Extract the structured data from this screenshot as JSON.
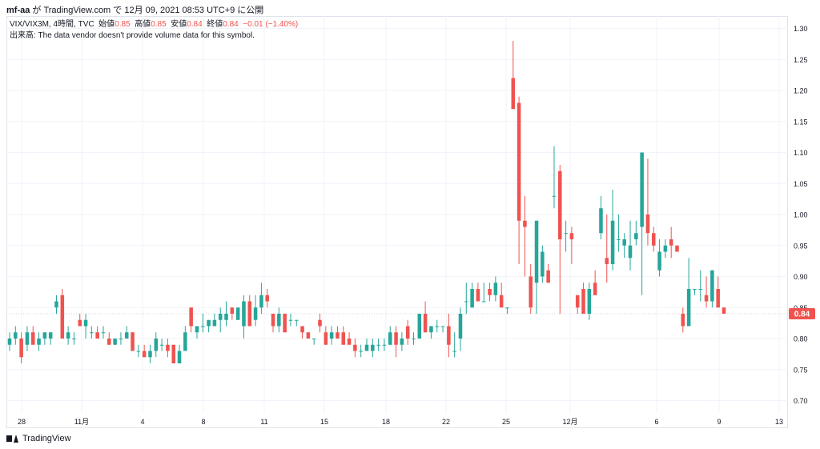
{
  "header": {
    "user": "mf-aa",
    "text": "が TradingView.com で 12月 09, 2021 08:53 UTC+9 に公開"
  },
  "legend": {
    "symbol": "VIX/VIX3M, 4時間, TVC",
    "open_label": "始値",
    "open": "0.85",
    "high_label": "高値",
    "high": "0.85",
    "low_label": "安値",
    "low": "0.84",
    "close_label": "終値",
    "close": "0.84",
    "change": "−0.01 (−1.40%)",
    "volume_note": "出来高: The data vendor doesn't provide volume data for this symbol."
  },
  "footer": {
    "brand": "TradingView"
  },
  "colors": {
    "up": "#26a69a",
    "down": "#ef5350",
    "grid": "#f0f3fa",
    "axis_text": "#131722"
  },
  "chart_data": {
    "type": "candlestick",
    "ylim": [
      0.68,
      1.32
    ],
    "y_ticks": [
      0.7,
      0.75,
      0.8,
      0.85,
      0.9,
      0.95,
      1.0,
      1.05,
      1.1,
      1.15,
      1.2,
      1.25,
      1.3
    ],
    "x_ticks": [
      "28",
      "11月",
      "4",
      "8",
      "11",
      "15",
      "18",
      "22",
      "25",
      "12月",
      "6",
      "9",
      "13"
    ],
    "last_price": 0.84,
    "candles": [
      {
        "o": 0.79,
        "h": 0.81,
        "l": 0.78,
        "c": 0.8
      },
      {
        "o": 0.8,
        "h": 0.82,
        "l": 0.79,
        "c": 0.81
      },
      {
        "o": 0.8,
        "h": 0.81,
        "l": 0.76,
        "c": 0.77
      },
      {
        "o": 0.79,
        "h": 0.82,
        "l": 0.78,
        "c": 0.81
      },
      {
        "o": 0.81,
        "h": 0.82,
        "l": 0.79,
        "c": 0.79
      },
      {
        "o": 0.79,
        "h": 0.81,
        "l": 0.78,
        "c": 0.8
      },
      {
        "o": 0.8,
        "h": 0.81,
        "l": 0.79,
        "c": 0.81
      },
      {
        "o": 0.8,
        "h": 0.81,
        "l": 0.79,
        "c": 0.81
      },
      {
        "o": 0.85,
        "h": 0.87,
        "l": 0.84,
        "c": 0.86
      },
      {
        "o": 0.87,
        "h": 0.88,
        "l": 0.8,
        "c": 0.8
      },
      {
        "o": 0.8,
        "h": 0.82,
        "l": 0.79,
        "c": 0.81
      },
      {
        "o": 0.8,
        "h": 0.81,
        "l": 0.79,
        "c": 0.8
      },
      {
        "o": 0.83,
        "h": 0.84,
        "l": 0.82,
        "c": 0.82
      },
      {
        "o": 0.82,
        "h": 0.84,
        "l": 0.8,
        "c": 0.83
      },
      {
        "o": 0.81,
        "h": 0.82,
        "l": 0.8,
        "c": 0.81
      },
      {
        "o": 0.81,
        "h": 0.82,
        "l": 0.8,
        "c": 0.8
      },
      {
        "o": 0.81,
        "h": 0.82,
        "l": 0.8,
        "c": 0.81
      },
      {
        "o": 0.8,
        "h": 0.81,
        "l": 0.79,
        "c": 0.79
      },
      {
        "o": 0.79,
        "h": 0.8,
        "l": 0.79,
        "c": 0.8
      },
      {
        "o": 0.8,
        "h": 0.81,
        "l": 0.79,
        "c": 0.8
      },
      {
        "o": 0.8,
        "h": 0.82,
        "l": 0.8,
        "c": 0.81
      },
      {
        "o": 0.81,
        "h": 0.81,
        "l": 0.78,
        "c": 0.78
      },
      {
        "o": 0.78,
        "h": 0.79,
        "l": 0.77,
        "c": 0.78
      },
      {
        "o": 0.78,
        "h": 0.79,
        "l": 0.77,
        "c": 0.77
      },
      {
        "o": 0.77,
        "h": 0.79,
        "l": 0.76,
        "c": 0.78
      },
      {
        "o": 0.78,
        "h": 0.81,
        "l": 0.77,
        "c": 0.8
      },
      {
        "o": 0.79,
        "h": 0.8,
        "l": 0.78,
        "c": 0.79
      },
      {
        "o": 0.79,
        "h": 0.8,
        "l": 0.77,
        "c": 0.78
      },
      {
        "o": 0.79,
        "h": 0.79,
        "l": 0.76,
        "c": 0.76
      },
      {
        "o": 0.76,
        "h": 0.79,
        "l": 0.76,
        "c": 0.78
      },
      {
        "o": 0.78,
        "h": 0.82,
        "l": 0.78,
        "c": 0.81
      },
      {
        "o": 0.85,
        "h": 0.85,
        "l": 0.81,
        "c": 0.82
      },
      {
        "o": 0.81,
        "h": 0.82,
        "l": 0.8,
        "c": 0.82
      },
      {
        "o": 0.82,
        "h": 0.84,
        "l": 0.81,
        "c": 0.82
      },
      {
        "o": 0.82,
        "h": 0.83,
        "l": 0.81,
        "c": 0.83
      },
      {
        "o": 0.82,
        "h": 0.84,
        "l": 0.82,
        "c": 0.83
      },
      {
        "o": 0.83,
        "h": 0.85,
        "l": 0.81,
        "c": 0.84
      },
      {
        "o": 0.83,
        "h": 0.86,
        "l": 0.82,
        "c": 0.84
      },
      {
        "o": 0.85,
        "h": 0.85,
        "l": 0.83,
        "c": 0.84
      },
      {
        "o": 0.83,
        "h": 0.85,
        "l": 0.83,
        "c": 0.85
      },
      {
        "o": 0.82,
        "h": 0.87,
        "l": 0.8,
        "c": 0.86
      },
      {
        "o": 0.86,
        "h": 0.87,
        "l": 0.82,
        "c": 0.82
      },
      {
        "o": 0.83,
        "h": 0.87,
        "l": 0.82,
        "c": 0.85
      },
      {
        "o": 0.85,
        "h": 0.89,
        "l": 0.84,
        "c": 0.87
      },
      {
        "o": 0.87,
        "h": 0.88,
        "l": 0.85,
        "c": 0.86
      },
      {
        "o": 0.84,
        "h": 0.84,
        "l": 0.81,
        "c": 0.82
      },
      {
        "o": 0.82,
        "h": 0.85,
        "l": 0.81,
        "c": 0.84
      },
      {
        "o": 0.84,
        "h": 0.84,
        "l": 0.81,
        "c": 0.81
      },
      {
        "o": 0.83,
        "h": 0.84,
        "l": 0.82,
        "c": 0.83
      },
      {
        "o": 0.83,
        "h": 0.83,
        "l": 0.82,
        "c": 0.83
      },
      {
        "o": 0.82,
        "h": 0.82,
        "l": 0.8,
        "c": 0.81
      },
      {
        "o": 0.81,
        "h": 0.81,
        "l": 0.8,
        "c": 0.8
      },
      {
        "o": 0.8,
        "h": 0.8,
        "l": 0.79,
        "c": 0.8
      },
      {
        "o": 0.83,
        "h": 0.84,
        "l": 0.81,
        "c": 0.82
      },
      {
        "o": 0.81,
        "h": 0.82,
        "l": 0.79,
        "c": 0.79
      },
      {
        "o": 0.8,
        "h": 0.82,
        "l": 0.79,
        "c": 0.81
      },
      {
        "o": 0.81,
        "h": 0.82,
        "l": 0.8,
        "c": 0.8
      },
      {
        "o": 0.81,
        "h": 0.82,
        "l": 0.79,
        "c": 0.79
      },
      {
        "o": 0.8,
        "h": 0.81,
        "l": 0.79,
        "c": 0.79
      },
      {
        "o": 0.79,
        "h": 0.8,
        "l": 0.77,
        "c": 0.78
      },
      {
        "o": 0.78,
        "h": 0.79,
        "l": 0.77,
        "c": 0.78
      },
      {
        "o": 0.78,
        "h": 0.8,
        "l": 0.78,
        "c": 0.79
      },
      {
        "o": 0.78,
        "h": 0.8,
        "l": 0.77,
        "c": 0.79
      },
      {
        "o": 0.79,
        "h": 0.8,
        "l": 0.78,
        "c": 0.79
      },
      {
        "o": 0.79,
        "h": 0.8,
        "l": 0.78,
        "c": 0.79
      },
      {
        "o": 0.79,
        "h": 0.82,
        "l": 0.79,
        "c": 0.81
      },
      {
        "o": 0.81,
        "h": 0.82,
        "l": 0.77,
        "c": 0.79
      },
      {
        "o": 0.79,
        "h": 0.81,
        "l": 0.78,
        "c": 0.8
      },
      {
        "o": 0.82,
        "h": 0.83,
        "l": 0.79,
        "c": 0.8
      },
      {
        "o": 0.8,
        "h": 0.81,
        "l": 0.79,
        "c": 0.8
      },
      {
        "o": 0.8,
        "h": 0.84,
        "l": 0.8,
        "c": 0.84
      },
      {
        "o": 0.84,
        "h": 0.86,
        "l": 0.81,
        "c": 0.81
      },
      {
        "o": 0.81,
        "h": 0.82,
        "l": 0.8,
        "c": 0.82
      },
      {
        "o": 0.82,
        "h": 0.83,
        "l": 0.81,
        "c": 0.82
      },
      {
        "o": 0.82,
        "h": 0.82,
        "l": 0.81,
        "c": 0.82
      },
      {
        "o": 0.82,
        "h": 0.84,
        "l": 0.77,
        "c": 0.79
      },
      {
        "o": 0.78,
        "h": 0.81,
        "l": 0.77,
        "c": 0.78
      },
      {
        "o": 0.8,
        "h": 0.85,
        "l": 0.78,
        "c": 0.84
      },
      {
        "o": 0.86,
        "h": 0.89,
        "l": 0.84,
        "c": 0.86
      },
      {
        "o": 0.85,
        "h": 0.89,
        "l": 0.85,
        "c": 0.88
      },
      {
        "o": 0.88,
        "h": 0.89,
        "l": 0.86,
        "c": 0.86
      },
      {
        "o": 0.86,
        "h": 0.89,
        "l": 0.86,
        "c": 0.86
      },
      {
        "o": 0.88,
        "h": 0.89,
        "l": 0.86,
        "c": 0.87
      },
      {
        "o": 0.87,
        "h": 0.9,
        "l": 0.86,
        "c": 0.89
      },
      {
        "o": 0.87,
        "h": 0.89,
        "l": 0.85,
        "c": 0.85
      },
      {
        "o": 0.85,
        "h": 0.85,
        "l": 0.84,
        "c": 0.85
      },
      {
        "o": 1.22,
        "h": 1.28,
        "l": 1.17,
        "c": 1.17
      },
      {
        "o": 1.18,
        "h": 1.19,
        "l": 0.92,
        "c": 0.99
      },
      {
        "o": 0.99,
        "h": 1.03,
        "l": 0.9,
        "c": 0.98
      },
      {
        "o": 0.9,
        "h": 0.92,
        "l": 0.84,
        "c": 0.85
      },
      {
        "o": 0.89,
        "h": 0.99,
        "l": 0.84,
        "c": 0.99
      },
      {
        "o": 0.9,
        "h": 0.95,
        "l": 0.89,
        "c": 0.94
      },
      {
        "o": 0.91,
        "h": 0.92,
        "l": 0.89,
        "c": 0.89
      },
      {
        "o": 1.03,
        "h": 1.11,
        "l": 1.01,
        "c": 1.03
      },
      {
        "o": 1.07,
        "h": 1.08,
        "l": 0.84,
        "c": 0.96
      },
      {
        "o": 0.97,
        "h": 0.99,
        "l": 0.94,
        "c": 0.97
      },
      {
        "o": 0.97,
        "h": 0.98,
        "l": 0.92,
        "c": 0.96
      },
      {
        "o": 0.87,
        "h": 0.87,
        "l": 0.84,
        "c": 0.85
      },
      {
        "o": 0.88,
        "h": 0.89,
        "l": 0.84,
        "c": 0.84
      },
      {
        "o": 0.84,
        "h": 0.89,
        "l": 0.83,
        "c": 0.88
      },
      {
        "o": 0.89,
        "h": 0.91,
        "l": 0.87,
        "c": 0.87
      },
      {
        "o": 0.97,
        "h": 1.03,
        "l": 0.96,
        "c": 1.01
      },
      {
        "o": 0.93,
        "h": 1.0,
        "l": 0.89,
        "c": 0.92
      },
      {
        "o": 0.92,
        "h": 1.04,
        "l": 0.91,
        "c": 0.99
      },
      {
        "o": 0.96,
        "h": 1.0,
        "l": 0.94,
        "c": 0.96
      },
      {
        "o": 0.95,
        "h": 0.97,
        "l": 0.93,
        "c": 0.96
      },
      {
        "o": 0.93,
        "h": 0.99,
        "l": 0.91,
        "c": 0.95
      },
      {
        "o": 0.96,
        "h": 0.99,
        "l": 0.95,
        "c": 0.97
      },
      {
        "o": 0.98,
        "h": 1.1,
        "l": 0.87,
        "c": 1.1
      },
      {
        "o": 1.0,
        "h": 1.09,
        "l": 0.95,
        "c": 0.97
      },
      {
        "o": 0.97,
        "h": 0.98,
        "l": 0.94,
        "c": 0.95
      },
      {
        "o": 0.91,
        "h": 0.96,
        "l": 0.9,
        "c": 0.94
      },
      {
        "o": 0.94,
        "h": 0.96,
        "l": 0.93,
        "c": 0.95
      },
      {
        "o": 0.96,
        "h": 0.98,
        "l": 0.93,
        "c": 0.95
      },
      {
        "o": 0.95,
        "h": 0.95,
        "l": 0.94,
        "c": 0.94
      },
      {
        "o": 0.84,
        "h": 0.85,
        "l": 0.81,
        "c": 0.82
      },
      {
        "o": 0.82,
        "h": 0.93,
        "l": 0.82,
        "c": 0.88
      },
      {
        "o": 0.88,
        "h": 0.88,
        "l": 0.87,
        "c": 0.88
      },
      {
        "o": 0.88,
        "h": 0.91,
        "l": 0.86,
        "c": 0.88
      },
      {
        "o": 0.87,
        "h": 0.9,
        "l": 0.85,
        "c": 0.86
      },
      {
        "o": 0.86,
        "h": 0.91,
        "l": 0.85,
        "c": 0.91
      },
      {
        "o": 0.88,
        "h": 0.9,
        "l": 0.85,
        "c": 0.85
      },
      {
        "o": 0.85,
        "h": 0.85,
        "l": 0.84,
        "c": 0.84
      }
    ]
  }
}
